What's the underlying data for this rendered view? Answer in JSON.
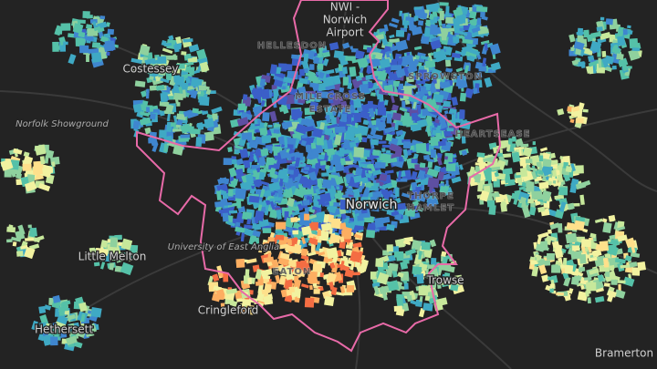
{
  "labels": {
    "airport": [
      "NWI -",
      "Norwich",
      "Airport"
    ],
    "hellesdon": "HELLESDON",
    "costessey": "Costessey",
    "sprowston": "SPROWSTON",
    "mile_cross": [
      "MILE CROSS",
      "ESTATE"
    ],
    "showground": "Norfolk Showground",
    "heartsease": "HEARTSEASE",
    "norwich": "Norwich",
    "thorpe_hamlet": [
      "THORPE",
      "HAMLET"
    ],
    "uea": "University of East Anglia",
    "little_melton": "Little Melton",
    "eaton": "EATON",
    "cringleford": "Cringleford",
    "hethersett": "Hethersett",
    "trowse": "Trowse",
    "bramerton": "Bramerton"
  }
}
